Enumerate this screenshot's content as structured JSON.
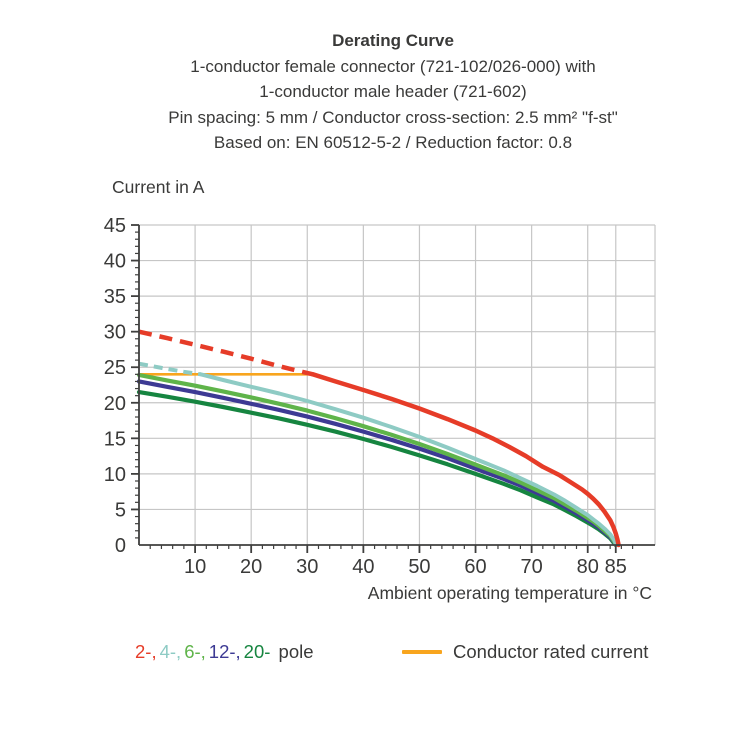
{
  "title": {
    "lines": [
      "Derating Curve",
      "1-conductor female connector (721-102/026-000) with",
      "1-conductor male header (721-602)",
      "Pin spacing: 5 mm / Conductor cross-section: 2.5 mm² \"f-st\"",
      "Based on: EN 60512-5-2 / Reduction factor: 0.8"
    ]
  },
  "axis_titles": {
    "y": "Current in A",
    "x": "Ambient operating temperature in °C"
  },
  "legend": {
    "pole_items": [
      {
        "label": "2-,",
        "color": "#e63c28"
      },
      {
        "label": "4-,",
        "color": "#8ecbc4"
      },
      {
        "label": "6-,",
        "color": "#5fb44a"
      },
      {
        "label": "12-,",
        "color": "#3d3a94"
      },
      {
        "label": "20-",
        "color": "#168540"
      }
    ],
    "pole_suffix": " pole",
    "rated_label": "Conductor rated current",
    "rated_color": "#f8a51e"
  },
  "colors": {
    "grid": "#c6c6c6",
    "axis": "#3f3f3e",
    "text": "#3a3a39"
  },
  "chart_data": {
    "type": "line",
    "title": "Derating Curve",
    "xlabel": "Ambient operating temperature in °C",
    "ylabel": "Current in A",
    "x_axis": {
      "min": 0,
      "max": 92,
      "major_ticks": [
        10,
        20,
        30,
        40,
        50,
        60,
        70,
        80,
        85
      ],
      "minor_step": 2,
      "grid_ticks": [
        10,
        20,
        30,
        40,
        50,
        60,
        70,
        80,
        85
      ]
    },
    "y_axis": {
      "min": 0,
      "max": 45,
      "major_ticks": [
        0,
        5,
        10,
        15,
        20,
        25,
        30,
        35,
        40,
        45
      ],
      "minor_step": 1,
      "grid_step": 5
    },
    "series": [
      {
        "name": "Conductor rated current",
        "color": "#f8a51e",
        "width": 2.6,
        "points": [
          [
            0,
            24
          ],
          [
            31.5,
            24
          ]
        ]
      },
      {
        "name": "20-pole",
        "color": "#168540",
        "width": 4.2,
        "points": [
          [
            0,
            21.5
          ],
          [
            5,
            20.85
          ],
          [
            10,
            20.15
          ],
          [
            15,
            19.4
          ],
          [
            20,
            18.6
          ],
          [
            25,
            17.8
          ],
          [
            30,
            16.9
          ],
          [
            35,
            15.95
          ],
          [
            40,
            14.9
          ],
          [
            45,
            13.8
          ],
          [
            50,
            12.6
          ],
          [
            55,
            11.35
          ],
          [
            60,
            10.0
          ],
          [
            65,
            8.6
          ],
          [
            68,
            7.7
          ],
          [
            71,
            6.7
          ],
          [
            74,
            5.7
          ],
          [
            76,
            4.9
          ],
          [
            78,
            4.05
          ],
          [
            80,
            3.15
          ],
          [
            81,
            2.7
          ],
          [
            82,
            2.2
          ],
          [
            83,
            1.6
          ],
          [
            84,
            0.95
          ],
          [
            84.6,
            0.35
          ],
          [
            85,
            0
          ]
        ]
      },
      {
        "name": "12-pole",
        "color": "#3d3a94",
        "width": 4.2,
        "points": [
          [
            0,
            23.0
          ],
          [
            5,
            22.25
          ],
          [
            10,
            21.5
          ],
          [
            15,
            20.7
          ],
          [
            20,
            19.85
          ],
          [
            25,
            19.0
          ],
          [
            30,
            18.05
          ],
          [
            35,
            17.05
          ],
          [
            40,
            15.95
          ],
          [
            45,
            14.8
          ],
          [
            50,
            13.55
          ],
          [
            55,
            12.2
          ],
          [
            60,
            10.75
          ],
          [
            65,
            9.3
          ],
          [
            68,
            8.35
          ],
          [
            71,
            7.3
          ],
          [
            74,
            6.2
          ],
          [
            76,
            5.35
          ],
          [
            78,
            4.45
          ],
          [
            80,
            3.5
          ],
          [
            81,
            3.0
          ],
          [
            82,
            2.45
          ],
          [
            83,
            1.8
          ],
          [
            84,
            1.1
          ],
          [
            84.7,
            0.4
          ],
          [
            85,
            0
          ]
        ]
      },
      {
        "name": "6-pole",
        "color": "#5fb44a",
        "width": 4.2,
        "points": [
          [
            0,
            23.9
          ],
          [
            5,
            23.15
          ],
          [
            10,
            22.4
          ],
          [
            15,
            21.6
          ],
          [
            20,
            20.75
          ],
          [
            25,
            19.85
          ],
          [
            30,
            18.9
          ],
          [
            35,
            17.85
          ],
          [
            40,
            16.7
          ],
          [
            45,
            15.5
          ],
          [
            50,
            14.2
          ],
          [
            55,
            12.8
          ],
          [
            60,
            11.3
          ],
          [
            65,
            9.8
          ],
          [
            68,
            8.8
          ],
          [
            71,
            7.7
          ],
          [
            74,
            6.6
          ],
          [
            76,
            5.7
          ],
          [
            78,
            4.8
          ],
          [
            80,
            3.8
          ],
          [
            81,
            3.3
          ],
          [
            82,
            2.7
          ],
          [
            83,
            2.0
          ],
          [
            84,
            1.3
          ],
          [
            84.7,
            0.5
          ],
          [
            85.05,
            0
          ]
        ]
      },
      {
        "name": "4-pole",
        "color": "#8ecbc4",
        "width": 4.0,
        "dash": "9 6",
        "dashed_points": [
          [
            0,
            25.5
          ],
          [
            4,
            24.9
          ],
          [
            8,
            24.35
          ],
          [
            11,
            24
          ]
        ],
        "points": [
          [
            11,
            24
          ],
          [
            15,
            23.2
          ],
          [
            20,
            22.25
          ],
          [
            25,
            21.3
          ],
          [
            30,
            20.25
          ],
          [
            35,
            19.1
          ],
          [
            40,
            17.9
          ],
          [
            45,
            16.6
          ],
          [
            50,
            15.2
          ],
          [
            55,
            13.7
          ],
          [
            60,
            12.1
          ],
          [
            65,
            10.5
          ],
          [
            68,
            9.4
          ],
          [
            71,
            8.3
          ],
          [
            74,
            7.1
          ],
          [
            76,
            6.2
          ],
          [
            78,
            5.2
          ],
          [
            80,
            4.2
          ],
          [
            81,
            3.6
          ],
          [
            82,
            3.0
          ],
          [
            83,
            2.3
          ],
          [
            84,
            1.5
          ],
          [
            84.7,
            0.7
          ],
          [
            85.1,
            0
          ]
        ]
      },
      {
        "name": "2-pole",
        "color": "#e63c28",
        "width": 4.5,
        "dash": "13 8",
        "dashed_points": [
          [
            0,
            30
          ],
          [
            5,
            29.1
          ],
          [
            10,
            28.15
          ],
          [
            15,
            27.2
          ],
          [
            20,
            26.2
          ],
          [
            25,
            25.15
          ],
          [
            28,
            24.55
          ],
          [
            31,
            24
          ]
        ],
        "points": [
          [
            31,
            24
          ],
          [
            35,
            23.0
          ],
          [
            40,
            21.8
          ],
          [
            45,
            20.55
          ],
          [
            50,
            19.2
          ],
          [
            55,
            17.7
          ],
          [
            60,
            16.1
          ],
          [
            63,
            15.0
          ],
          [
            66,
            13.8
          ],
          [
            69,
            12.5
          ],
          [
            72,
            11.0
          ],
          [
            75,
            9.8
          ],
          [
            77,
            8.8
          ],
          [
            79,
            7.8
          ],
          [
            80,
            7.2
          ],
          [
            81,
            6.5
          ],
          [
            82,
            5.7
          ],
          [
            83,
            4.7
          ],
          [
            84,
            3.5
          ],
          [
            84.6,
            2.5
          ],
          [
            85,
            1.6
          ],
          [
            85.3,
            0.8
          ],
          [
            85.5,
            0
          ]
        ]
      }
    ],
    "annotations": {
      "rated_current_A": 24,
      "curves_end_at_C": 85
    }
  }
}
